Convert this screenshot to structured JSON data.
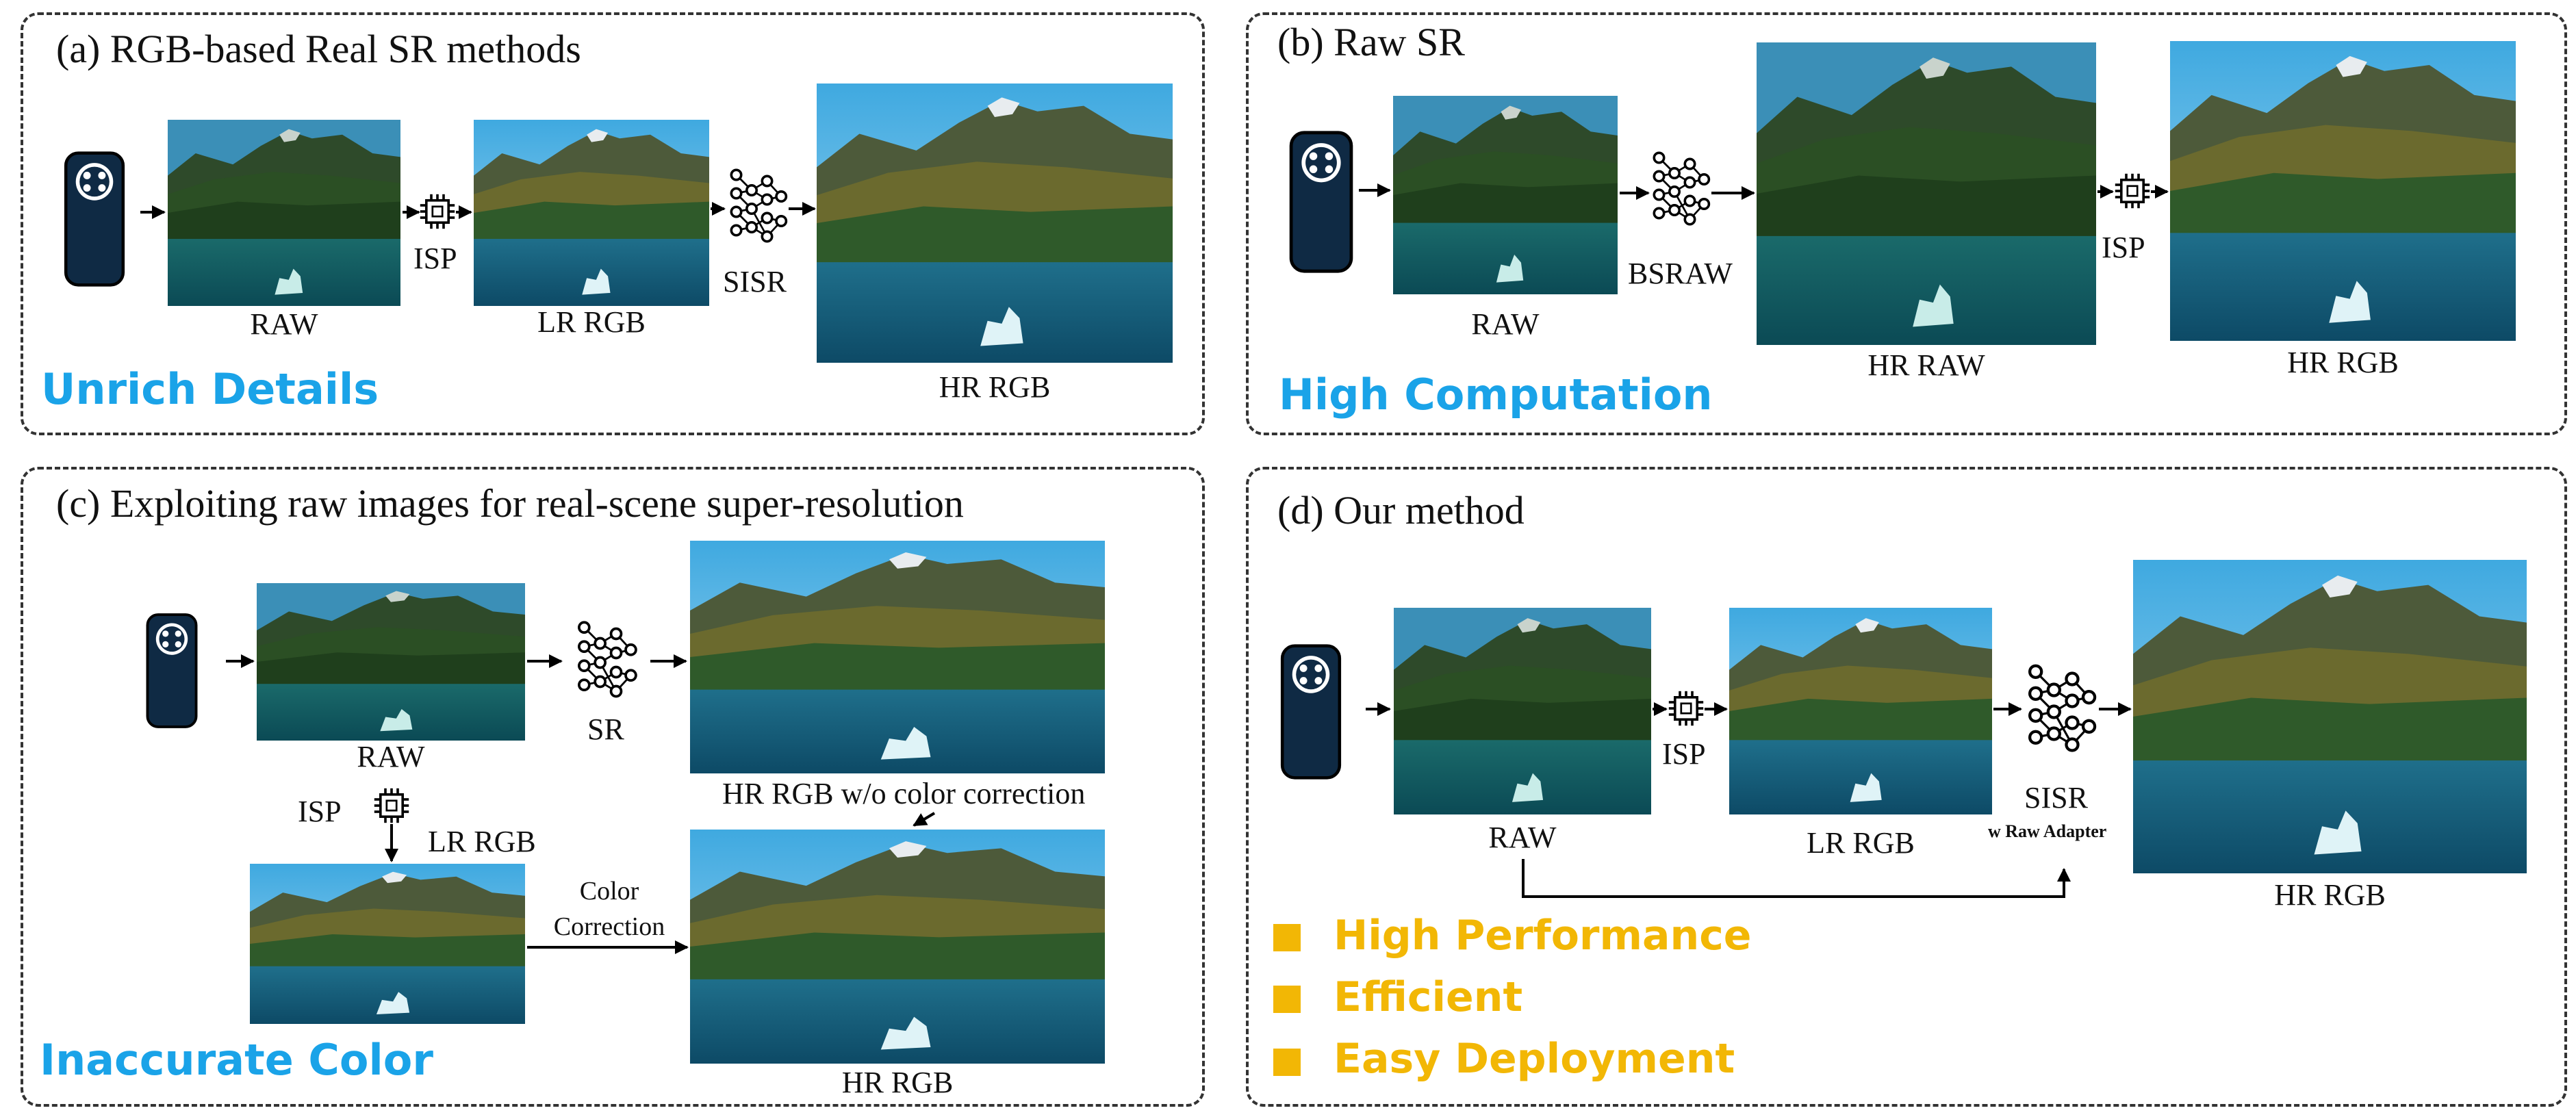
{
  "panel_a": {
    "title": "(a) RGB-based Real SR methods",
    "raw_label": "RAW",
    "isp_label": "ISP",
    "lr_label": "LR RGB",
    "sisr_label": "SISR",
    "hr_label": "HR RGB",
    "note": "Unrich Details"
  },
  "panel_b": {
    "title": "(b) Raw SR",
    "raw_label": "RAW",
    "bsraw_label": "BSRAW",
    "hrraw_label": "HR RAW",
    "isp_label": "ISP",
    "hr_label": "HR RGB",
    "note": "High Computation"
  },
  "panel_c": {
    "title": "(c) Exploiting raw images for real-scene super-resolution",
    "raw_label": "RAW",
    "sr_label": "SR",
    "hr_wo_label": "HR RGB w/o color correction",
    "isp_label": "ISP",
    "lr_label": "LR RGB",
    "color_label_1": "Color",
    "color_label_2": "Correction",
    "hr_label": "HR RGB",
    "note": "Inaccurate Color"
  },
  "panel_d": {
    "title": "(d) Our method",
    "raw_label": "RAW",
    "isp_label": "ISP",
    "lr_label": "LR RGB",
    "sisr_label": "SISR",
    "adapter_label": "w Raw Adapter",
    "hr_label": "HR RGB",
    "benefits": [
      "High Performance",
      "Efficient",
      "Easy Deployment"
    ]
  },
  "colors": {
    "accent_blue": "#1aa3e8",
    "accent_gold": "#f2b705",
    "camera": "#0f2a44"
  },
  "icons": [
    "camera-icon",
    "chip-icon",
    "neural-network-icon",
    "landscape-image"
  ]
}
